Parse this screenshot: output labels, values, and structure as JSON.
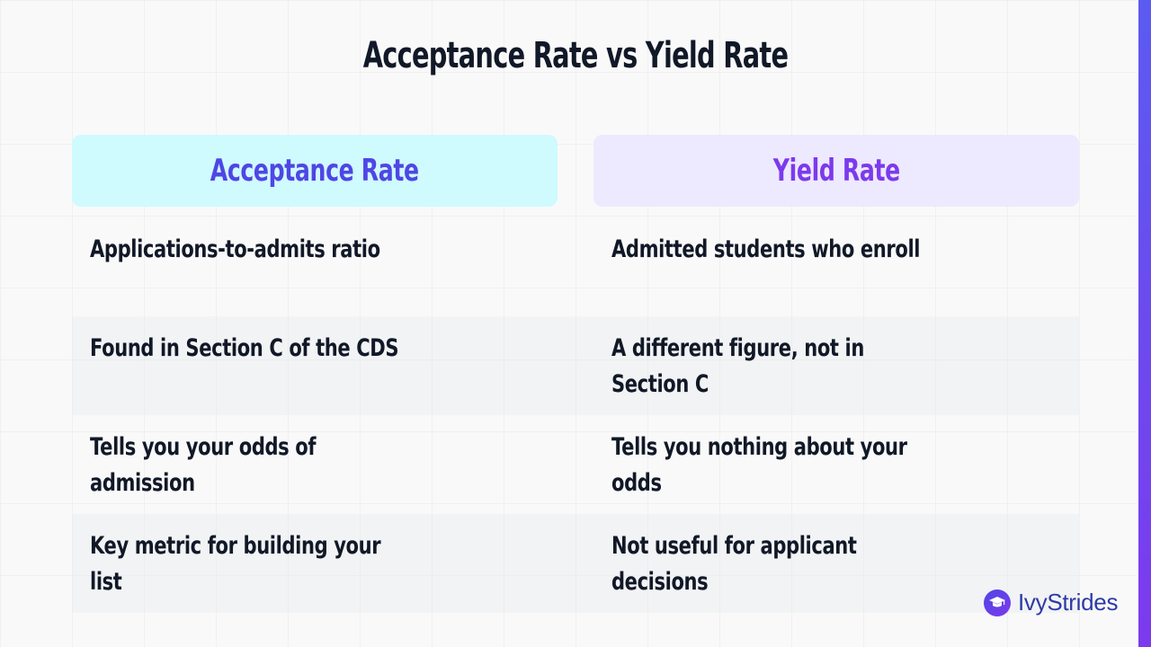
{
  "slide": {
    "title": "Acceptance Rate vs Yield Rate"
  },
  "columns": {
    "left_header": "Acceptance Rate",
    "right_header": "Yield Rate"
  },
  "rows": [
    {
      "left": "Applications-to-admits ratio",
      "right": "Admitted students who enroll"
    },
    {
      "left": "Found in Section C of the CDS",
      "right": "A different figure, not in Section C"
    },
    {
      "left": "Tells you your odds of admission",
      "right": "Tells you nothing about your odds"
    },
    {
      "left": "Key metric for building your list",
      "right": "Not useful for applicant decisions"
    }
  ],
  "brand": {
    "logo_text": "IvyStrides",
    "logo_icon": "graduation-cap-icon"
  },
  "colors": {
    "left_header_bg": "#cffafe",
    "left_header_text": "#4f46e5",
    "right_header_bg": "#ede9fe",
    "right_header_text": "#7c3aed",
    "accent": "#5b5bf0"
  }
}
